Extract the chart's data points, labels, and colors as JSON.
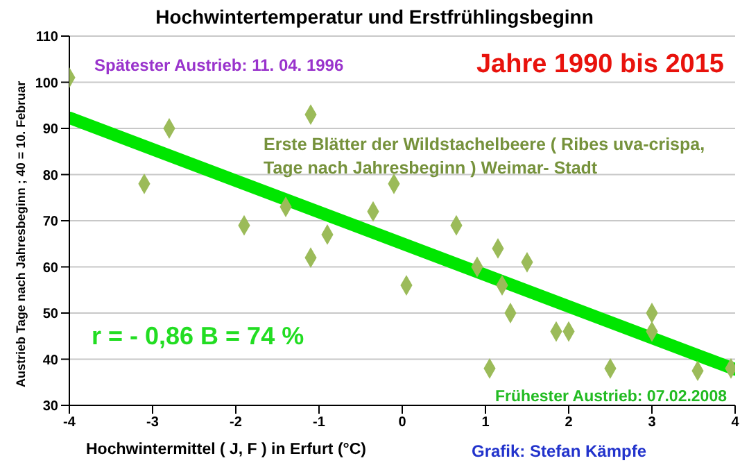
{
  "chart_data": {
    "type": "scatter",
    "title": "Hochwintertemperatur  und Erstfrühlingsbeginn",
    "xlabel": "Hochwintermittel  ( J, F )  in Erfurt (°C)",
    "ylabel": "Austrieb Tage nach Jahresbeginn ; 40 = 10. Februar",
    "annotations": [
      "Spätester Austrieb: 11. 04. 1996",
      "Jahre 1990 bis 2015",
      "Erste Blätter der Wildstachelbeere ( Ribes uva-crispa, Tage nach Jahresbeginn )  Weimar- Stadt",
      "r = - 0,86  B = 74 %",
      "Frühester Austrieb: 07.02.2008",
      "Grafik: Stefan Kämpfe"
    ],
    "series": [
      {
        "color": "#9bbb59",
        "x": [
          -4,
          -3.1,
          -2.8,
          -1.9,
          -1.4,
          -1.1,
          -1.1,
          -0.9,
          -0.35,
          -0.1,
          0.05,
          0.65,
          0.9,
          1.15,
          1.5,
          1.2,
          1.3,
          1.05,
          1.85,
          2.0,
          2.5,
          3.0,
          3.0,
          3.55,
          3.95
        ],
        "values": [
          101,
          78,
          90,
          69,
          73,
          93,
          62,
          67,
          72,
          78,
          56,
          69,
          60,
          64,
          61,
          56,
          50,
          38,
          46,
          46,
          38,
          50,
          46,
          37.5,
          38
        ]
      },
      {
        "type": "line",
        "marker": "none",
        "color": "#00e600",
        "x": [
          -4,
          4
        ],
        "values": [
          92.3,
          37.8
        ]
      }
    ],
    "xlim": [
      -4,
      4
    ],
    "xticks": [
      -4,
      -3,
      -2,
      -1,
      0,
      1,
      2,
      3,
      4
    ],
    "ylim": [
      30,
      110
    ],
    "yticks": [
      30,
      40,
      50,
      60,
      70,
      80,
      90,
      100,
      110
    ],
    "grid": "y",
    "marker": "diamond",
    "line_style": "solid"
  }
}
